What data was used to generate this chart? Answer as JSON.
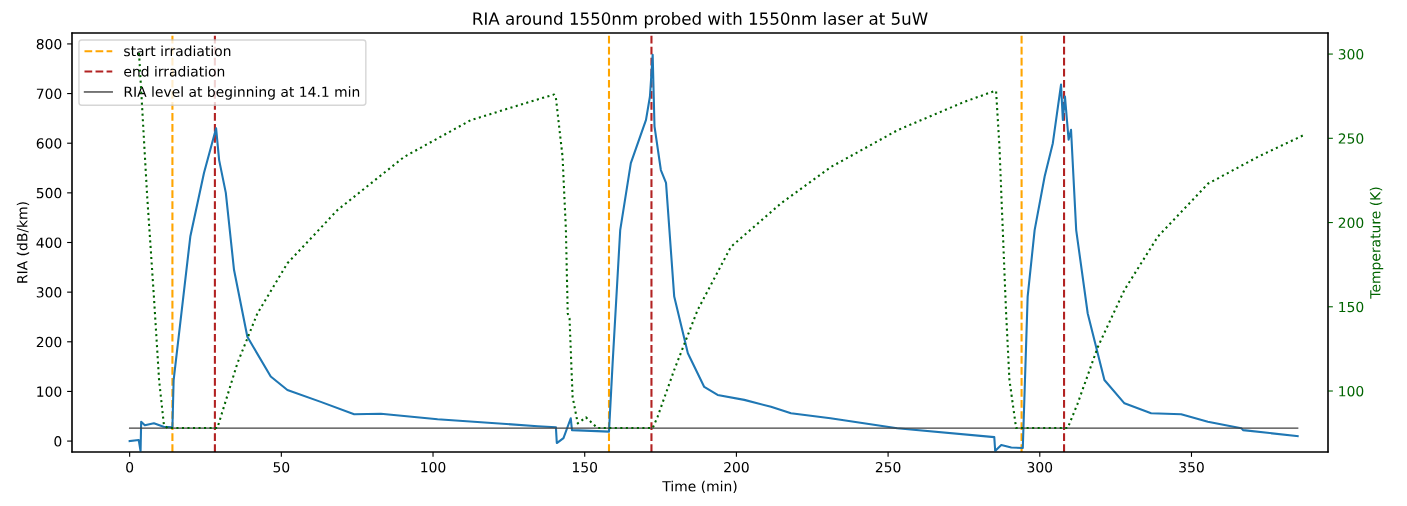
{
  "chart_data": {
    "type": "line",
    "title": "RIA around 1550nm probed with 1550nm laser at 5uW",
    "xlabel": "Time (min)",
    "ylabel": "RIA (dB/km)",
    "y2label": "Temperature (K)",
    "xlim": [
      -19,
      395
    ],
    "xticks": [
      0,
      50,
      100,
      150,
      200,
      250,
      300,
      350
    ],
    "ylim": [
      -22,
      822
    ],
    "yticks": [
      0,
      100,
      200,
      300,
      400,
      500,
      600,
      700,
      800
    ],
    "y2lim": [
      63.8,
      312.5
    ],
    "y2ticks": [
      100,
      150,
      200,
      250,
      300
    ],
    "grid": false,
    "legend": "top left",
    "marker": "none",
    "series": [
      {
        "color": "#1f77b4",
        "line_style": "solid",
        "x": [
          0,
          3,
          3.6,
          3.8,
          5,
          8,
          11.2,
          14.1,
          14.5,
          20,
          24.5,
          28.5,
          29.5,
          31.7,
          34.4,
          38.8,
          46.5,
          52,
          63,
          74,
          82.8,
          101.5,
          134.5,
          140.5,
          140.8,
          143,
          145.4,
          145.8,
          150,
          158,
          159.2,
          161.7,
          165.2,
          170.2,
          171.5,
          172.4,
          173,
          175.1,
          176.8,
          179.5,
          184,
          189.4,
          193.8,
          202.6,
          211.4,
          218,
          231,
          253,
          285,
          285.3,
          285.6,
          287.3,
          290.6,
          294.4,
          296,
          298.3,
          301.6,
          304.3,
          307,
          307.6,
          308.3,
          309.5,
          310.3,
          312,
          315.8,
          321.3,
          327.9,
          336.7,
          346.6,
          355.4,
          366.4,
          367,
          385
        ],
        "values": [
          0,
          2,
          -20,
          39,
          32,
          36,
          29,
          28,
          123,
          412,
          540,
          630,
          566,
          500,
          345,
          210,
          130,
          103,
          79,
          54,
          55,
          44,
          30,
          28,
          -4,
          6,
          46,
          22,
          21,
          19,
          157,
          425,
          560,
          647,
          694,
          778,
          634,
          546,
          520,
          291,
          177,
          109,
          93,
          83,
          69,
          56,
          46,
          26,
          8,
          -20,
          -18,
          -8,
          -13,
          -14,
          291,
          425,
          533,
          600,
          718,
          647,
          694,
          607,
          627,
          425,
          257,
          123,
          76,
          56,
          54,
          39,
          26,
          22,
          10
        ]
      },
      {
        "color": "#006400",
        "axis": "y2",
        "line_style": "dotted",
        "x": [
          3.1,
          5.8,
          8,
          9.7,
          11.3,
          12.5,
          28.9,
          35.5,
          42.1,
          52,
          68.5,
          90.5,
          112.5,
          135.6,
          139.9,
          140.5,
          142.7,
          143.8,
          144.4,
          145,
          146,
          147.7,
          150.4,
          154.2,
          172.4,
          174,
          179.5,
          187.2,
          198.2,
          214.7,
          231.2,
          253.2,
          275.2,
          285.3,
          285.6,
          286.7,
          287.8,
          288.9,
          290,
          292.2,
          309.2,
          312.5,
          319.1,
          327.9,
          338.9,
          355.4,
          371.9,
          387
        ],
        "values": [
          300.6,
          215,
          156,
          106.5,
          79.8,
          78,
          78,
          116.4,
          146,
          175.8,
          207.4,
          239,
          260.8,
          273.7,
          276,
          274,
          239,
          195.5,
          146,
          143,
          96.6,
          80.8,
          84.4,
          78,
          78,
          84.6,
          112.5,
          148,
          185.6,
          211.4,
          233,
          254.9,
          271.7,
          278.2,
          278,
          245,
          195.5,
          146,
          106.5,
          78,
          78,
          92.7,
          126,
          160,
          191.6,
          223,
          239,
          251.9
        ]
      },
      {
        "name": "RIA level at beginning at 14.1 min",
        "color": "#404040",
        "line_style": "solid",
        "x": [
          0,
          385
        ],
        "values": [
          26,
          26
        ]
      }
    ],
    "ref_lines": [
      {
        "axis": "x",
        "value": 14.1,
        "label": "start irradiation",
        "color": "#ffa500",
        "line_style": "dashed"
      },
      {
        "axis": "x",
        "value": 28.1,
        "label": "end irradiation",
        "color": "#b22222",
        "line_style": "dashed"
      },
      {
        "axis": "x",
        "value": 158,
        "label": null,
        "color": "#ffa500",
        "line_style": "dashed"
      },
      {
        "axis": "x",
        "value": 172,
        "label": null,
        "color": "#b22222",
        "line_style": "dashed"
      },
      {
        "axis": "x",
        "value": 294,
        "label": null,
        "color": "#ffa500",
        "line_style": "dashed"
      },
      {
        "axis": "x",
        "value": 308,
        "label": null,
        "color": "#b22222",
        "line_style": "dashed"
      }
    ]
  }
}
